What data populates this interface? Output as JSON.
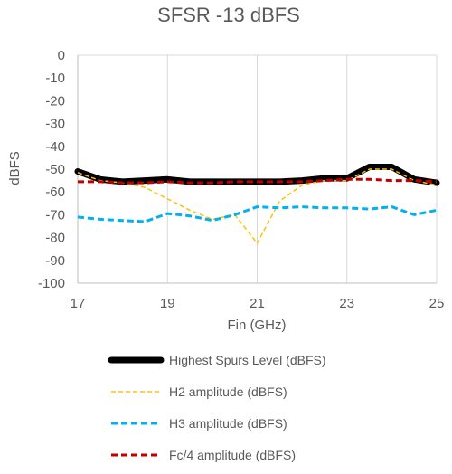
{
  "chart_data": {
    "type": "line",
    "title": "SFSR  -13 dBFS",
    "xlabel": "Fin (GHz)",
    "ylabel": "dBFS",
    "xlim": [
      17,
      25
    ],
    "ylim": [
      -100,
      0
    ],
    "x_ticks": [
      17,
      19,
      21,
      23,
      25
    ],
    "y_ticks": [
      0,
      -10,
      -20,
      -30,
      -40,
      -50,
      -60,
      -70,
      -80,
      -90,
      -100
    ],
    "grid": "vertical",
    "legend_position": "bottom",
    "series": [
      {
        "name": "Highest Spurs Level (dBFS)",
        "color": "#000000",
        "style": "solid-thick",
        "x": [
          17,
          17.5,
          18,
          18.5,
          19,
          19.5,
          20,
          20.5,
          21,
          21.5,
          22,
          22.5,
          23,
          23.5,
          24,
          24.5,
          25
        ],
        "y": [
          -51,
          -54.5,
          -55.5,
          -55,
          -54.5,
          -55.5,
          -55.5,
          -55.5,
          -55.5,
          -55.5,
          -55,
          -54,
          -54,
          -49,
          -49,
          -54.5,
          -56
        ]
      },
      {
        "name": "H2 amplitude (dBFS)",
        "color": "#FFC000",
        "style": "dashed",
        "x": [
          17,
          17.5,
          18,
          18.5,
          19,
          19.5,
          20,
          20.5,
          21,
          21.5,
          22,
          22.5,
          23,
          23.5,
          24,
          24.5,
          25
        ],
        "y": [
          -51.5,
          -55,
          -56,
          -58,
          -63,
          -68,
          -72,
          -70,
          -82.5,
          -64,
          -57,
          -55,
          -55,
          -50,
          -50,
          -55,
          -57
        ]
      },
      {
        "name": "H3 amplitude (dBFS)",
        "color": "#00B0F0",
        "style": "dashed",
        "x": [
          17,
          17.5,
          18,
          18.5,
          19,
          19.5,
          20,
          20.5,
          21,
          21.5,
          22,
          22.5,
          23,
          23.5,
          24,
          24.5,
          25
        ],
        "y": [
          -71,
          -72,
          -72.5,
          -73,
          -69.5,
          -70.5,
          -72.5,
          -70,
          -66.5,
          -67,
          -66.5,
          -67,
          -67,
          -67.5,
          -66.5,
          -70,
          -68
        ]
      },
      {
        "name": "Fc/4 amplitude (dBFS)",
        "color": "#C00000",
        "style": "dashed",
        "x": [
          17,
          17.5,
          18,
          18.5,
          19,
          19.5,
          20,
          20.5,
          21,
          21.5,
          22,
          22.5,
          23,
          23.5,
          24,
          24.5,
          25
        ],
        "y": [
          -55.5,
          -55.5,
          -56,
          -56,
          -55.5,
          -56,
          -56,
          -55.5,
          -55.5,
          -55.5,
          -55.5,
          -55,
          -54.5,
          -54.5,
          -55,
          -55,
          -55.5
        ]
      }
    ]
  }
}
